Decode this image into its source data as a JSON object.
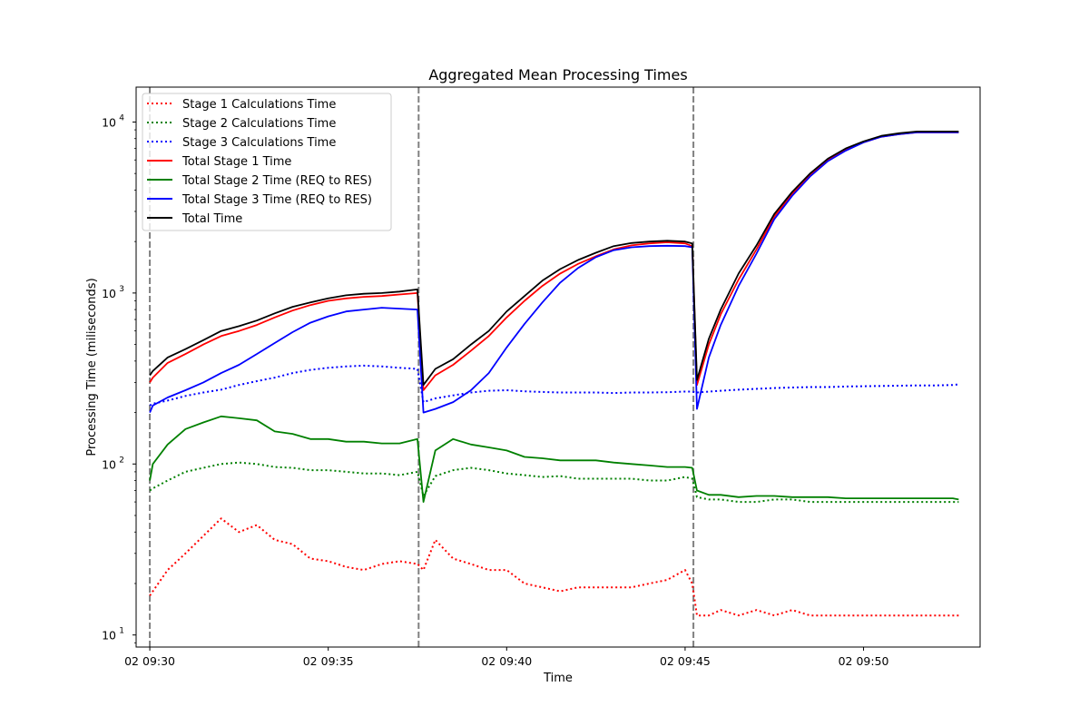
{
  "chart_data": {
    "type": "line",
    "title": "Aggregated Mean Processing Times",
    "xlabel": "Time",
    "ylabel": "Processing Time (miliseconds)",
    "yscale": "log",
    "ylim": [
      8.5,
      16000
    ],
    "xlim": [
      "02 09:29:37",
      "02 09:53:16"
    ],
    "x_ticks": [
      {
        "value": "02 09:30:00",
        "label": "02 09:30"
      },
      {
        "value": "02 09:35:00",
        "label": "02 09:35"
      },
      {
        "value": "02 09:40:00",
        "label": "02 09:40"
      },
      {
        "value": "02 09:45:00",
        "label": "02 09:45"
      },
      {
        "value": "02 09:50:00",
        "label": "02 09:50"
      }
    ],
    "y_ticks": [
      {
        "value": 10,
        "base": "10",
        "exp": "1"
      },
      {
        "value": 100,
        "base": "10",
        "exp": "2"
      },
      {
        "value": 1000,
        "base": "10",
        "exp": "3"
      },
      {
        "value": 10000,
        "base": "10",
        "exp": "4"
      }
    ],
    "vertical_markers": [
      "02 09:30:00",
      "02 09:37:32",
      "02 09:45:14"
    ],
    "marker_color": "#808080",
    "legend_position": "upper left",
    "grid": false,
    "x": [
      "02 09:30:00",
      "02 09:30:05",
      "02 09:30:30",
      "02 09:31:00",
      "02 09:31:30",
      "02 09:32:00",
      "02 09:32:30",
      "02 09:33:00",
      "02 09:33:30",
      "02 09:34:00",
      "02 09:34:30",
      "02 09:35:00",
      "02 09:35:30",
      "02 09:36:00",
      "02 09:36:30",
      "02 09:37:00",
      "02 09:37:30",
      "02 09:37:40",
      "02 09:38:00",
      "02 09:38:30",
      "02 09:39:00",
      "02 09:39:30",
      "02 09:40:00",
      "02 09:40:30",
      "02 09:41:00",
      "02 09:41:30",
      "02 09:42:00",
      "02 09:42:30",
      "02 09:43:00",
      "02 09:43:30",
      "02 09:44:00",
      "02 09:44:30",
      "02 09:45:00",
      "02 09:45:12",
      "02 09:45:20",
      "02 09:45:40",
      "02 09:46:00",
      "02 09:46:30",
      "02 09:47:00",
      "02 09:47:30",
      "02 09:48:00",
      "02 09:48:30",
      "02 09:49:00",
      "02 09:49:30",
      "02 09:50:00",
      "02 09:50:30",
      "02 09:51:00",
      "02 09:51:30",
      "02 09:52:00",
      "02 09:52:30",
      "02 09:52:40"
    ],
    "series": [
      {
        "name": "Stage 1 Calculations Time",
        "color": "#ff0000",
        "style": "dotted",
        "values": [
          17,
          18,
          24,
          30,
          38,
          48,
          40,
          44,
          36,
          34,
          28,
          27,
          25,
          24,
          26,
          27,
          26,
          24,
          36,
          28,
          26,
          24,
          24,
          20,
          19,
          18,
          19,
          19,
          19,
          19,
          20,
          21,
          24,
          20,
          13,
          13,
          14,
          13,
          14,
          13,
          14,
          13,
          13,
          13,
          13,
          13,
          13,
          13,
          13,
          13,
          13
        ]
      },
      {
        "name": "Stage 2 Calculations Time",
        "color": "#008000",
        "style": "dotted",
        "values": [
          70,
          72,
          80,
          90,
          95,
          100,
          102,
          100,
          96,
          95,
          92,
          92,
          90,
          88,
          88,
          86,
          90,
          65,
          85,
          92,
          95,
          92,
          88,
          86,
          84,
          85,
          82,
          82,
          82,
          82,
          80,
          80,
          84,
          82,
          64,
          62,
          62,
          60,
          60,
          62,
          62,
          60,
          60,
          60,
          60,
          60,
          60,
          60,
          60,
          60,
          60
        ]
      },
      {
        "name": "Stage 3 Calculations Time",
        "color": "#0000ff",
        "style": "dotted",
        "values": [
          220,
          225,
          235,
          250,
          262,
          272,
          290,
          305,
          320,
          340,
          355,
          365,
          372,
          376,
          372,
          365,
          360,
          230,
          242,
          252,
          262,
          268,
          270,
          266,
          264,
          262,
          262,
          262,
          260,
          262,
          262,
          263,
          265,
          265,
          262,
          265,
          268,
          272,
          275,
          278,
          280,
          282,
          282,
          284,
          285,
          286,
          287,
          288,
          288,
          290,
          292
        ]
      },
      {
        "name": "Total Stage 1 Time",
        "color": "#ff0000",
        "style": "solid",
        "values": [
          300,
          320,
          390,
          440,
          500,
          560,
          600,
          650,
          720,
          790,
          850,
          900,
          930,
          950,
          960,
          980,
          1000,
          270,
          330,
          380,
          460,
          560,
          720,
          900,
          1100,
          1300,
          1480,
          1640,
          1800,
          1900,
          1950,
          1980,
          1950,
          1880,
          290,
          500,
          750,
          1200,
          1800,
          2800,
          3800,
          4900,
          6000,
          6900,
          7600,
          8200,
          8500,
          8700,
          8700,
          8700,
          8700
        ]
      },
      {
        "name": "Total Stage 2 Time (REQ to RES)",
        "color": "#008000",
        "style": "solid",
        "values": [
          80,
          100,
          130,
          160,
          175,
          190,
          185,
          180,
          155,
          150,
          140,
          140,
          135,
          135,
          132,
          132,
          140,
          60,
          120,
          140,
          130,
          125,
          120,
          110,
          108,
          105,
          105,
          105,
          102,
          100,
          98,
          96,
          96,
          95,
          70,
          66,
          66,
          64,
          65,
          65,
          64,
          64,
          64,
          63,
          63,
          63,
          63,
          63,
          63,
          63,
          62
        ]
      },
      {
        "name": "Total Stage 3 Time (REQ to RES)",
        "color": "#0000ff",
        "style": "solid",
        "values": [
          200,
          220,
          245,
          270,
          300,
          340,
          380,
          440,
          510,
          590,
          670,
          730,
          780,
          800,
          820,
          810,
          800,
          200,
          210,
          230,
          270,
          340,
          480,
          660,
          880,
          1150,
          1400,
          1620,
          1780,
          1850,
          1880,
          1890,
          1880,
          1850,
          210,
          420,
          650,
          1100,
          1700,
          2700,
          3700,
          4800,
          5900,
          6800,
          7600,
          8200,
          8500,
          8700,
          8700,
          8700,
          8700
        ]
      },
      {
        "name": "Total Time",
        "color": "#000000",
        "style": "solid",
        "values": [
          330,
          350,
          420,
          470,
          530,
          600,
          640,
          690,
          760,
          830,
          880,
          930,
          970,
          990,
          1000,
          1020,
          1050,
          290,
          360,
          410,
          500,
          600,
          780,
          960,
          1180,
          1380,
          1560,
          1720,
          1880,
          1960,
          2000,
          2020,
          2000,
          1950,
          310,
          540,
          800,
          1300,
          1900,
          2900,
          3900,
          5000,
          6100,
          7000,
          7700,
          8300,
          8600,
          8800,
          8800,
          8800,
          8800
        ]
      }
    ]
  }
}
